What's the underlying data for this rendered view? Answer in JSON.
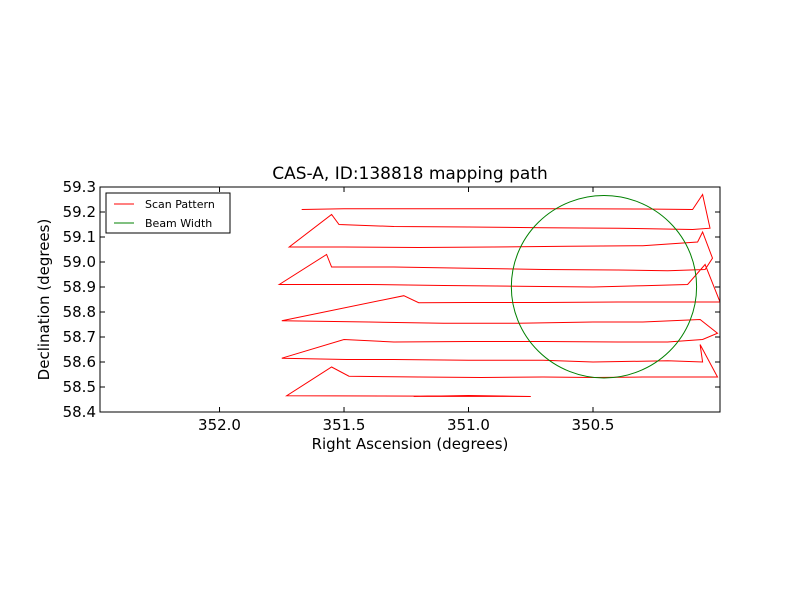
{
  "chart_data": {
    "type": "line",
    "title": "CAS-A, ID:138818 mapping path",
    "xlabel": "Right Ascension (degrees)",
    "ylabel": "Declination (degrees)",
    "xlim": [
      352.48,
      349.99
    ],
    "ylim": [
      58.4,
      59.3
    ],
    "x_inverted": true,
    "grid": false,
    "legend_position": "top-left",
    "x_ticks": [
      352.0,
      351.5,
      351.0,
      350.5
    ],
    "x_tick_labels": [
      "352.0",
      "351.5",
      "351.0",
      "350.5"
    ],
    "y_ticks": [
      58.4,
      58.5,
      58.6,
      58.7,
      58.8,
      58.9,
      59.0,
      59.1,
      59.2,
      59.3
    ],
    "y_tick_labels": [
      "58.4",
      "58.5",
      "58.6",
      "58.7",
      "58.8",
      "58.9",
      "59.0",
      "59.1",
      "59.2",
      "59.3"
    ],
    "series": [
      {
        "name": "Scan Pattern",
        "color": "#ff0000",
        "type": "line",
        "points": [
          [
            351.22,
            58.462
          ],
          [
            351.0,
            58.466
          ],
          [
            350.75,
            58.462
          ],
          [
            351.73,
            58.465
          ],
          [
            351.55,
            58.58
          ],
          [
            351.48,
            58.543
          ],
          [
            351.2,
            58.54
          ],
          [
            350.95,
            58.538
          ],
          [
            350.7,
            58.54
          ],
          [
            350.5,
            58.538
          ],
          [
            350.3,
            58.54
          ],
          [
            350.1,
            58.54
          ],
          [
            350.0,
            58.54
          ],
          [
            350.07,
            58.67
          ],
          [
            350.06,
            58.6
          ],
          [
            350.2,
            58.605
          ],
          [
            350.5,
            58.6
          ],
          [
            350.7,
            58.607
          ],
          [
            351.0,
            58.607
          ],
          [
            351.3,
            58.61
          ],
          [
            351.49,
            58.61
          ],
          [
            351.75,
            58.615
          ],
          [
            351.5,
            58.69
          ],
          [
            351.3,
            58.68
          ],
          [
            351.0,
            58.682
          ],
          [
            350.7,
            58.682
          ],
          [
            350.4,
            58.68
          ],
          [
            350.2,
            58.68
          ],
          [
            350.06,
            58.69
          ],
          [
            350.0,
            58.715
          ],
          [
            350.07,
            58.77
          ],
          [
            350.3,
            58.76
          ],
          [
            350.5,
            58.76
          ],
          [
            350.8,
            58.755
          ],
          [
            351.1,
            58.755
          ],
          [
            351.4,
            58.76
          ],
          [
            351.75,
            58.765
          ],
          [
            351.26,
            58.865
          ],
          [
            351.2,
            58.837
          ],
          [
            351.0,
            58.838
          ],
          [
            350.7,
            58.838
          ],
          [
            350.4,
            58.84
          ],
          [
            350.1,
            58.84
          ],
          [
            349.99,
            58.84
          ],
          [
            350.05,
            58.99
          ],
          [
            350.12,
            58.91
          ],
          [
            350.3,
            58.905
          ],
          [
            350.5,
            58.9
          ],
          [
            350.8,
            58.903
          ],
          [
            351.1,
            58.906
          ],
          [
            351.4,
            58.91
          ],
          [
            351.76,
            58.91
          ],
          [
            351.57,
            59.03
          ],
          [
            351.55,
            58.98
          ],
          [
            351.3,
            58.98
          ],
          [
            351.0,
            58.975
          ],
          [
            350.7,
            58.97
          ],
          [
            350.4,
            58.968
          ],
          [
            350.2,
            58.965
          ],
          [
            350.05,
            58.97
          ],
          [
            350.02,
            59.015
          ],
          [
            350.06,
            59.12
          ],
          [
            350.08,
            59.08
          ],
          [
            350.3,
            59.065
          ],
          [
            350.6,
            59.063
          ],
          [
            350.9,
            59.06
          ],
          [
            351.2,
            59.058
          ],
          [
            351.5,
            59.06
          ],
          [
            351.72,
            59.06
          ],
          [
            351.55,
            59.19
          ],
          [
            351.52,
            59.15
          ],
          [
            351.3,
            59.142
          ],
          [
            351.0,
            59.14
          ],
          [
            350.7,
            59.137
          ],
          [
            350.4,
            59.135
          ],
          [
            350.1,
            59.13
          ],
          [
            350.03,
            59.135
          ],
          [
            350.06,
            59.27
          ],
          [
            350.1,
            59.21
          ],
          [
            350.3,
            59.212
          ],
          [
            350.6,
            59.213
          ],
          [
            350.9,
            59.213
          ],
          [
            351.2,
            59.213
          ],
          [
            351.5,
            59.213
          ],
          [
            351.67,
            59.21
          ]
        ]
      },
      {
        "name": "Beam Width",
        "color": "#008000",
        "type": "circle",
        "center": [
          350.456,
          58.901
        ],
        "radius_ra": 0.372,
        "radius_dec": 0.365
      }
    ]
  }
}
